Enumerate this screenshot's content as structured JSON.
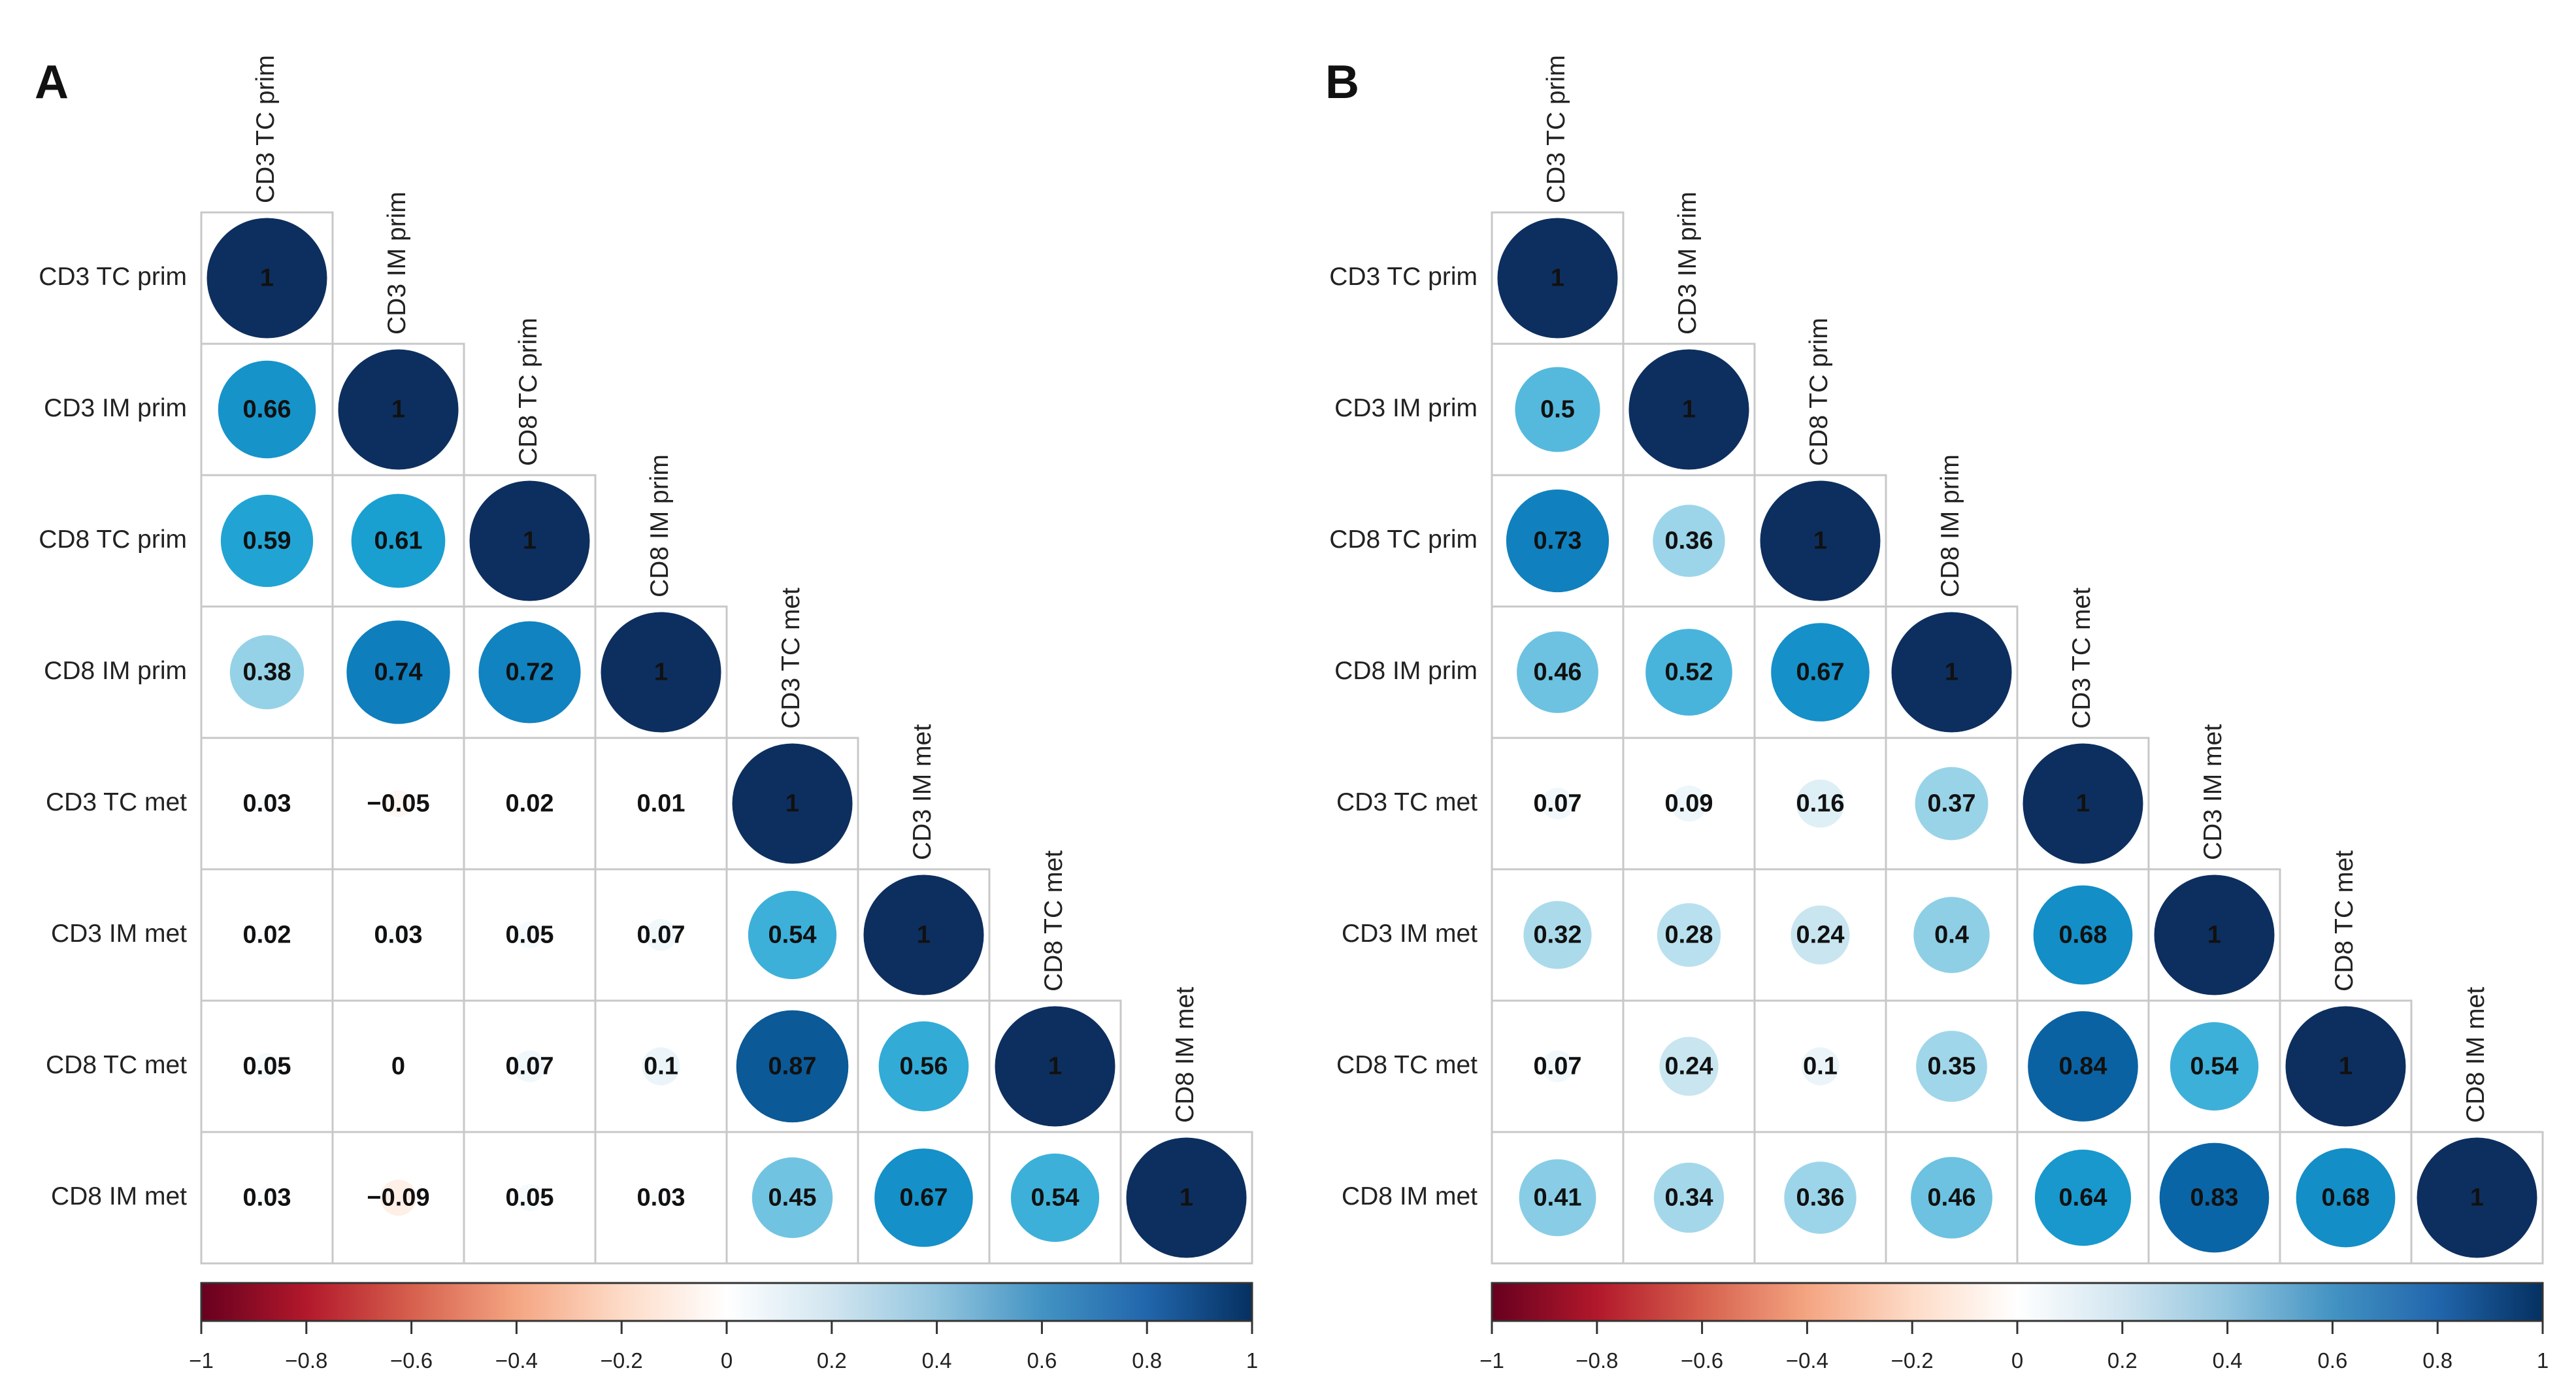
{
  "chart_data": [
    {
      "type": "heatmap",
      "subtype": "correlation-matrix-lower-triangle",
      "panel_label": "A",
      "variables": [
        "CD3 TC prim",
        "CD3 IM prim",
        "CD8 TC prim",
        "CD8 IM prim",
        "CD3 TC met",
        "CD3 IM met",
        "CD8 TC met",
        "CD8 IM met"
      ],
      "value_labels": [
        [
          "1"
        ],
        [
          "0.66",
          "1"
        ],
        [
          "0.59",
          "0.61",
          "1"
        ],
        [
          "0.38",
          "0.74",
          "0.72",
          "1"
        ],
        [
          "0.03",
          "−0.05",
          "0.02",
          "0.01",
          "1"
        ],
        [
          "0.02",
          "0.03",
          "0.05",
          "0.07",
          "0.54",
          "1"
        ],
        [
          "0.05",
          "0",
          "0.07",
          "0.1",
          "0.87",
          "0.56",
          "1"
        ],
        [
          "0.03",
          "−0.09",
          "0.05",
          "0.03",
          "0.45",
          "0.67",
          "0.54",
          "1"
        ]
      ],
      "values": [
        [
          1
        ],
        [
          0.66,
          1
        ],
        [
          0.59,
          0.61,
          1
        ],
        [
          0.38,
          0.74,
          0.72,
          1
        ],
        [
          0.03,
          -0.05,
          0.02,
          0.01,
          1
        ],
        [
          0.02,
          0.03,
          0.05,
          0.07,
          0.54,
          1
        ],
        [
          0.05,
          0,
          0.07,
          0.1,
          0.87,
          0.56,
          1
        ],
        [
          0.03,
          -0.09,
          0.05,
          0.03,
          0.45,
          0.67,
          0.54,
          1
        ]
      ],
      "color_scale": {
        "range": [
          -1,
          1
        ],
        "ticks": [
          "−1",
          "−0.8",
          "−0.6",
          "−0.4",
          "−0.2",
          "0",
          "0.2",
          "0.4",
          "0.6",
          "0.8",
          "1"
        ]
      }
    },
    {
      "type": "heatmap",
      "subtype": "correlation-matrix-lower-triangle",
      "panel_label": "B",
      "variables": [
        "CD3 TC prim",
        "CD3 IM prim",
        "CD8 TC prim",
        "CD8 IM prim",
        "CD3 TC met",
        "CD3 IM met",
        "CD8 TC met",
        "CD8 IM met"
      ],
      "value_labels": [
        [
          "1"
        ],
        [
          "0.5",
          "1"
        ],
        [
          "0.73",
          "0.36",
          "1"
        ],
        [
          "0.46",
          "0.52",
          "0.67",
          "1"
        ],
        [
          "0.07",
          "0.09",
          "0.16",
          "0.37",
          "1"
        ],
        [
          "0.32",
          "0.28",
          "0.24",
          "0.4",
          "0.68",
          "1"
        ],
        [
          "0.07",
          "0.24",
          "0.1",
          "0.35",
          "0.84",
          "0.54",
          "1"
        ],
        [
          "0.41",
          "0.34",
          "0.36",
          "0.46",
          "0.64",
          "0.83",
          "0.68",
          "1"
        ]
      ],
      "values": [
        [
          1
        ],
        [
          0.5,
          1
        ],
        [
          0.73,
          0.36,
          1
        ],
        [
          0.46,
          0.52,
          0.67,
          1
        ],
        [
          0.07,
          0.09,
          0.16,
          0.37,
          1
        ],
        [
          0.32,
          0.28,
          0.24,
          0.4,
          0.68,
          1
        ],
        [
          0.07,
          0.24,
          0.1,
          0.35,
          0.84,
          0.54,
          1
        ],
        [
          0.41,
          0.34,
          0.36,
          0.46,
          0.64,
          0.83,
          0.68,
          1
        ]
      ],
      "color_scale": {
        "range": [
          -1,
          1
        ],
        "ticks": [
          "−1",
          "−0.8",
          "−0.6",
          "−0.4",
          "−0.2",
          "0",
          "0.2",
          "0.4",
          "0.6",
          "0.8",
          "1"
        ]
      }
    }
  ],
  "palette": {
    "stops": [
      "#67001f",
      "#b2182b",
      "#d6604d",
      "#f4a582",
      "#fddbc7",
      "#ffffff",
      "#d1e5f0",
      "#92c5de",
      "#4393c3",
      "#2166ac",
      "#053061"
    ],
    "circle_stops": [
      "#67001f",
      "#c7202a",
      "#ea5d48",
      "#f6a482",
      "#fcdcca",
      "#ffffff",
      "#d6ebf3",
      "#8ecfe6",
      "#1ba2d3",
      "#0a6fb3",
      "#0d2f5f"
    ],
    "value_text": "#111111",
    "cell_border": "#c8c8c8"
  }
}
